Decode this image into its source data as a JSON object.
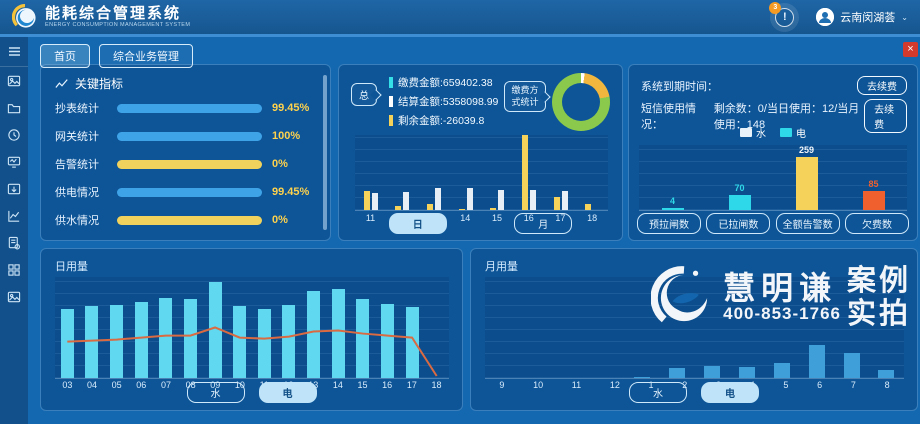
{
  "header": {
    "title": "能耗综合管理系统",
    "subtitle": "ENERGY CONSUMPTION MANAGEMENT SYSTEM",
    "notification_count": "3",
    "notification_glyph": "!",
    "user_name": "云南闵湖荟",
    "chevron": "⌄"
  },
  "tabs": [
    {
      "label": "首页"
    },
    {
      "label": "综合业务管理"
    }
  ],
  "sidebar": {
    "icons": [
      "menu-icon",
      "gallery-icon",
      "folder-icon",
      "history-icon",
      "monitor-chart-icon",
      "download-folder-icon",
      "line-chart-icon",
      "report-settings-icon",
      "apps-grid-icon",
      "image-icon"
    ]
  },
  "kpi": {
    "title": "关键指标",
    "rows": [
      {
        "label": "抄表统计",
        "value": "99.45%",
        "color": "#3fa3e8"
      },
      {
        "label": "网关统计",
        "value": "100%",
        "color": "#3fa3e8"
      },
      {
        "label": "告警统计",
        "value": "0%",
        "color": "#f0d25c"
      },
      {
        "label": "供电情况",
        "value": "99.45%",
        "color": "#3fa3e8"
      },
      {
        "label": "供水情况",
        "value": "0%",
        "color": "#f0d25c"
      }
    ]
  },
  "payment": {
    "bubble": "总",
    "stats": [
      {
        "label": "缴费金额:659402.38",
        "marker": "#35e0e8"
      },
      {
        "label": "结算金额:5358098.99",
        "marker": "#ffffff"
      },
      {
        "label": "剩余金额:-26039.8",
        "marker": "#f5d35a"
      }
    ],
    "donut_label_1": "缴费方",
    "donut_label_2": "式统计",
    "day_btn": "日",
    "month_btn": "月"
  },
  "system": {
    "expire_label": "系统到期时间：",
    "renew_btn": "去续费",
    "sms_label": "短信使用情况：",
    "sms_value": "剩余数：0/当日使用：12/当月使用：148",
    "legend_water": "水",
    "legend_elec": "电",
    "legend_water_color": "#e8f2f8",
    "legend_elec_color": "#2fd8e8",
    "buttons": [
      "预拉闸数",
      "已拉闸数",
      "全额告警数",
      "欠费数"
    ]
  },
  "daily": {
    "title": "日用量",
    "water_btn": "水",
    "elec_btn": "电"
  },
  "monthly": {
    "title": "月用量",
    "water_btn": "水",
    "elec_btn": "电"
  },
  "watermark": {
    "name": "慧明谦",
    "phone": "400-853-1766",
    "tag1": "案例",
    "tag2": "实拍"
  },
  "corner_close": "×",
  "chart_data": [
    {
      "id": "donut",
      "type": "pie",
      "title": "缴费方式统计",
      "slices": [
        {
          "name": "sliver",
          "value": 2,
          "color": "#ffffff"
        },
        {
          "name": "yellow",
          "value": 20,
          "color": "#f0b63e"
        },
        {
          "name": "green",
          "value": 78,
          "color": "#8bc94c"
        }
      ],
      "legend_position": "none"
    },
    {
      "id": "pay-bars",
      "type": "bar",
      "categories": [
        "11",
        "12",
        "13",
        "14",
        "15",
        "16",
        "17",
        "18"
      ],
      "series": [
        {
          "name": "yellow",
          "color": "#f5d35a",
          "values": [
            26,
            5,
            8,
            2,
            3,
            100,
            17,
            8
          ]
        },
        {
          "name": "white",
          "color": "#e8eef5",
          "values": [
            23,
            24,
            29,
            30,
            27,
            27,
            25,
            0
          ]
        }
      ],
      "ylim": [
        0,
        100
      ],
      "grid": true
    },
    {
      "id": "sms-bars",
      "type": "bar",
      "categories": [
        "预拉闸数",
        "已拉闸数",
        "全额告警数",
        "欠费数"
      ],
      "values": [
        4,
        70,
        259,
        85
      ],
      "colors": [
        "#2fd8e8",
        "#2fd8e8",
        "#f5d35a",
        "#f0602f"
      ],
      "label_colors": [
        "#2fd8e8",
        "#2fd8e8",
        "#f2f7fb",
        "#f0602f"
      ],
      "ylim": [
        0,
        280
      ],
      "grid": true
    },
    {
      "id": "daily",
      "type": "bar+line",
      "title": "日用量",
      "categories": [
        "03",
        "04",
        "05",
        "06",
        "07",
        "08",
        "09",
        "10",
        "11",
        "12",
        "13",
        "14",
        "15",
        "16",
        "17",
        "18"
      ],
      "bar_values": [
        68,
        71,
        72,
        75,
        79,
        78,
        95,
        71,
        68,
        72,
        86,
        88,
        78,
        73,
        70,
        0
      ],
      "line_values": [
        36,
        37,
        38,
        40,
        42,
        42,
        50,
        40,
        39,
        41,
        46,
        47,
        44,
        42,
        40,
        2
      ],
      "bar_color": "#5fd8f0",
      "line_color": "#d96a41",
      "ylim": [
        0,
        100
      ],
      "grid": true
    },
    {
      "id": "monthly",
      "type": "bar",
      "title": "月用量",
      "categories": [
        "9",
        "10",
        "11",
        "12",
        "1",
        "2",
        "3",
        "4",
        "5",
        "6",
        "7",
        "8"
      ],
      "values": [
        0,
        0,
        0,
        0,
        1,
        10,
        12,
        11,
        15,
        33,
        25,
        8
      ],
      "bar_color": "#3f9fd8",
      "ylim": [
        0,
        100
      ],
      "grid": true
    }
  ]
}
